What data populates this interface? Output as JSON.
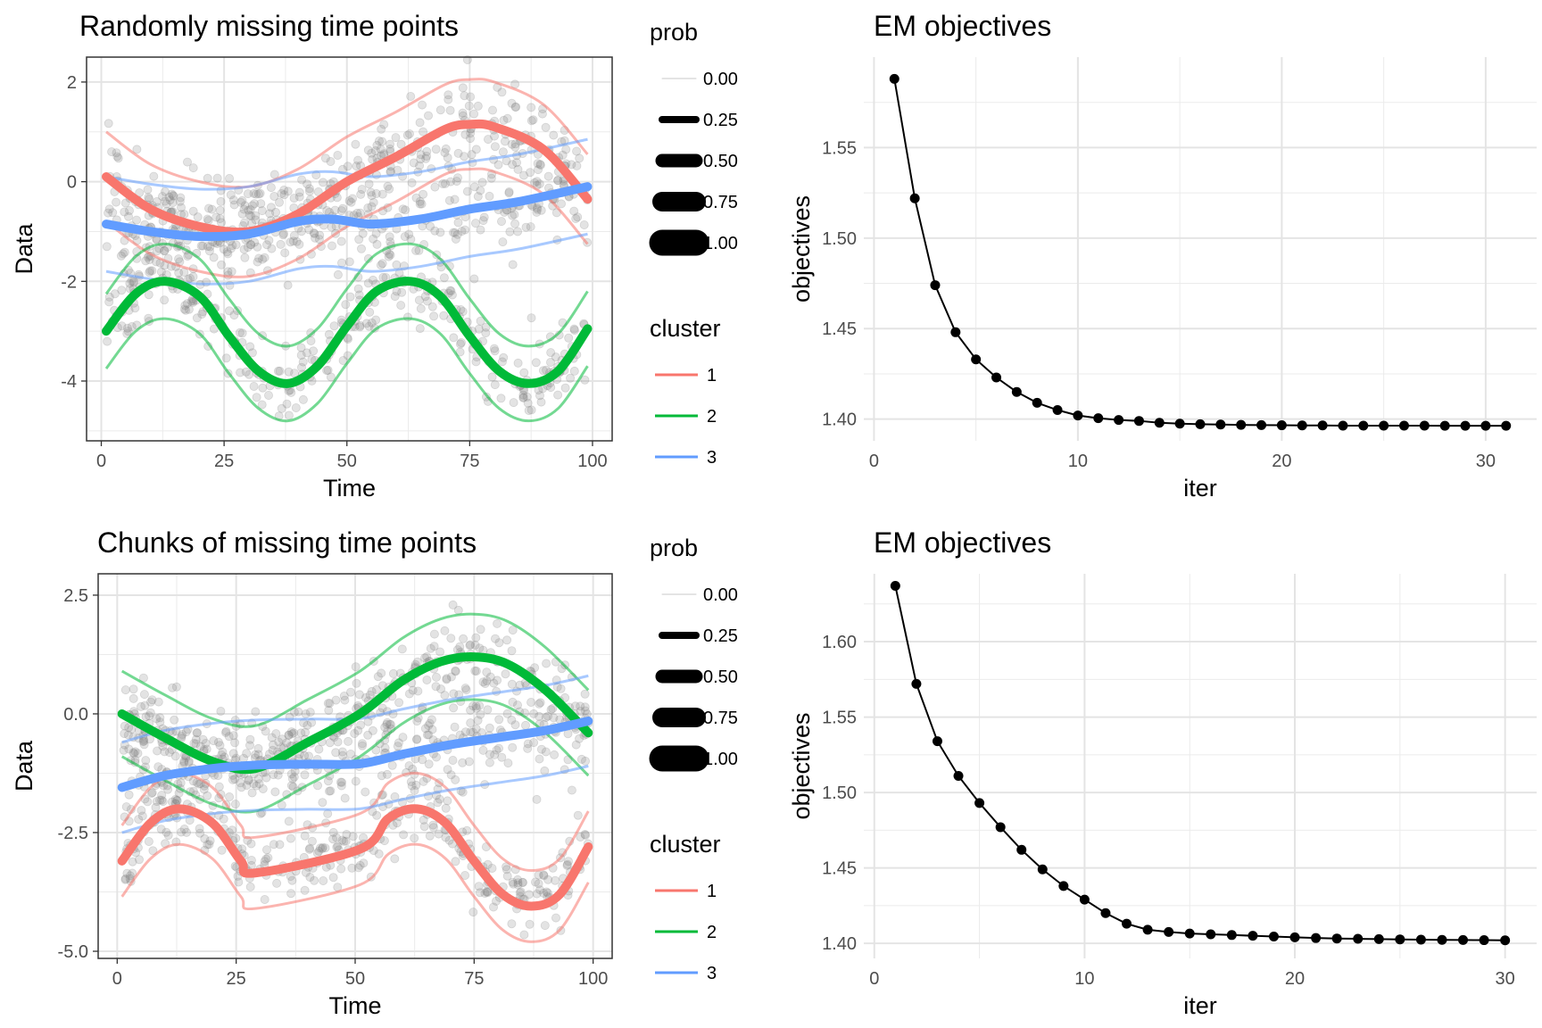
{
  "chart_data": [
    {
      "type": "line",
      "panel": "top-left",
      "title": "Randomly missing time points",
      "xlabel": "Time",
      "ylabel": "Data",
      "xlim": [
        -3,
        104
      ],
      "ylim": [
        -5.2,
        2.5
      ],
      "xticks": [
        0,
        25,
        50,
        75,
        100
      ],
      "xtick_labels": [
        "0",
        "25",
        "50",
        "75",
        "100"
      ],
      "yticks": [
        -4,
        -2,
        0,
        2
      ],
      "ytick_labels": [
        "-4",
        "-2",
        "0",
        "2"
      ],
      "grid": true,
      "panel_border": true,
      "scatter_color": "#808080",
      "scatter_seed": 11,
      "series": [
        {
          "name": "1",
          "color": "#F8766D",
          "x": [
            1,
            10,
            20,
            30,
            40,
            50,
            60,
            70,
            75,
            80,
            90,
            99
          ],
          "mean": [
            0.1,
            -0.55,
            -0.9,
            -1.0,
            -0.65,
            0.0,
            0.5,
            1.05,
            1.15,
            1.1,
            0.65,
            -0.35
          ],
          "band": 0.9
        },
        {
          "name": "2",
          "color": "#00BA38",
          "x": [
            1,
            7,
            13,
            20,
            26,
            32,
            38,
            44,
            50,
            56,
            63,
            69,
            75,
            81,
            87,
            93,
            99
          ],
          "mean": [
            -3.0,
            -2.25,
            -2.0,
            -2.3,
            -3.1,
            -3.8,
            -4.05,
            -3.7,
            -2.9,
            -2.2,
            -2.0,
            -2.3,
            -3.1,
            -3.8,
            -4.05,
            -3.8,
            -2.95
          ],
          "band": 0.75
        },
        {
          "name": "3",
          "color": "#619CFF",
          "x": [
            1,
            10,
            20,
            30,
            40,
            47,
            55,
            65,
            75,
            85,
            99
          ],
          "mean": [
            -0.85,
            -1.0,
            -1.1,
            -1.05,
            -0.8,
            -0.75,
            -0.85,
            -0.75,
            -0.55,
            -0.4,
            -0.1
          ],
          "band": 0.95
        }
      ]
    },
    {
      "type": "line",
      "panel": "top-right",
      "title": "EM objectives",
      "xlabel": "iter",
      "ylabel": "objectives",
      "xlim": [
        -0.5,
        32.5
      ],
      "ylim": [
        1.388,
        1.6
      ],
      "xticks": [
        0,
        10,
        20,
        30
      ],
      "xtick_labels": [
        "0",
        "10",
        "20",
        "30"
      ],
      "yticks": [
        1.4,
        1.45,
        1.5,
        1.55
      ],
      "ytick_labels": [
        "1.40",
        "1.45",
        "1.50",
        "1.55"
      ],
      "grid": true,
      "panel_border": false,
      "x": [
        1,
        2,
        3,
        4,
        5,
        6,
        7,
        8,
        9,
        10,
        11,
        12,
        13,
        14,
        15,
        16,
        17,
        18,
        19,
        20,
        21,
        22,
        23,
        24,
        25,
        26,
        27,
        28,
        29,
        30,
        31
      ],
      "y": [
        1.588,
        1.522,
        1.474,
        1.448,
        1.433,
        1.423,
        1.415,
        1.409,
        1.405,
        1.402,
        1.4005,
        1.3995,
        1.399,
        1.398,
        1.3975,
        1.3972,
        1.397,
        1.3968,
        1.3967,
        1.3966,
        1.3965,
        1.3965,
        1.3964,
        1.3964,
        1.3964,
        1.3964,
        1.3964,
        1.3963,
        1.3963,
        1.3963,
        1.3963
      ]
    },
    {
      "type": "line",
      "panel": "bottom-left",
      "title": "Chunks of missing time points",
      "xlabel": "Time",
      "ylabel": "Data",
      "xlim": [
        -4,
        104
      ],
      "ylim": [
        -5.15,
        2.95
      ],
      "xticks": [
        0,
        25,
        50,
        75,
        100
      ],
      "xtick_labels": [
        "0",
        "25",
        "50",
        "75",
        "100"
      ],
      "yticks": [
        -5.0,
        -2.5,
        0.0,
        2.5
      ],
      "ytick_labels": [
        "-5.0",
        "-2.5",
        "0.0",
        "2.5"
      ],
      "grid": true,
      "panel_border": true,
      "scatter_color": "#808080",
      "scatter_seed": 23,
      "series": [
        {
          "name": "1",
          "color": "#F8766D",
          "x": [
            1,
            7,
            13,
            20,
            26,
            29,
            51,
            57,
            63,
            69,
            75,
            81,
            87,
            93,
            99
          ],
          "mean": [
            -3.1,
            -2.3,
            -2.0,
            -2.3,
            -3.1,
            -3.35,
            -2.85,
            -2.2,
            -2.0,
            -2.3,
            -3.1,
            -3.8,
            -4.05,
            -3.8,
            -2.8
          ],
          "band": 0.75
        },
        {
          "name": "2",
          "color": "#00BA38",
          "x": [
            1,
            10,
            20,
            29,
            40,
            51,
            60,
            68,
            75,
            82,
            90,
            99
          ],
          "mean": [
            0.0,
            -0.5,
            -1.0,
            -1.15,
            -0.6,
            0.0,
            0.7,
            1.1,
            1.2,
            1.05,
            0.5,
            -0.4
          ],
          "band": 0.9
        },
        {
          "name": "3",
          "color": "#619CFF",
          "x": [
            1,
            10,
            20,
            29,
            40,
            51,
            60,
            70,
            80,
            90,
            99
          ],
          "mean": [
            -1.55,
            -1.3,
            -1.15,
            -1.08,
            -1.06,
            -1.05,
            -0.85,
            -0.65,
            -0.5,
            -0.35,
            -0.15
          ],
          "band": 0.95
        }
      ]
    },
    {
      "type": "line",
      "panel": "bottom-right",
      "title": "EM objectives",
      "xlabel": "iter",
      "ylabel": "objectives",
      "xlim": [
        -0.5,
        31.5
      ],
      "ylim": [
        1.39,
        1.645
      ],
      "xticks": [
        0,
        10,
        20,
        30
      ],
      "xtick_labels": [
        "0",
        "10",
        "20",
        "30"
      ],
      "yticks": [
        1.4,
        1.45,
        1.5,
        1.55,
        1.6
      ],
      "ytick_labels": [
        "1.40",
        "1.45",
        "1.50",
        "1.55",
        "1.60"
      ],
      "grid": true,
      "panel_border": false,
      "x": [
        1,
        2,
        3,
        4,
        5,
        6,
        7,
        8,
        9,
        10,
        11,
        12,
        13,
        14,
        15,
        16,
        17,
        18,
        19,
        20,
        21,
        22,
        23,
        24,
        25,
        26,
        27,
        28,
        29,
        30
      ],
      "y": [
        1.637,
        1.572,
        1.534,
        1.511,
        1.493,
        1.477,
        1.462,
        1.449,
        1.438,
        1.429,
        1.42,
        1.413,
        1.409,
        1.4075,
        1.4065,
        1.406,
        1.4055,
        1.405,
        1.4045,
        1.404,
        1.4035,
        1.4032,
        1.403,
        1.4028,
        1.4026,
        1.4024,
        1.4023,
        1.4022,
        1.4021,
        1.402
      ]
    }
  ],
  "legends": [
    {
      "panel": "top",
      "prob_title": "prob",
      "prob_items": [
        {
          "label": "0.00",
          "value": 0.0
        },
        {
          "label": "0.25",
          "value": 0.25
        },
        {
          "label": "0.50",
          "value": 0.5
        },
        {
          "label": "0.75",
          "value": 0.75
        },
        {
          "label": "1.00",
          "value": 1.0
        }
      ],
      "cluster_title": "cluster",
      "cluster_items": [
        {
          "label": "1",
          "color": "#F8766D"
        },
        {
          "label": "2",
          "color": "#00BA38"
        },
        {
          "label": "3",
          "color": "#619CFF"
        }
      ]
    },
    {
      "panel": "bottom",
      "prob_title": "prob",
      "prob_items": [
        {
          "label": "0.00",
          "value": 0.0
        },
        {
          "label": "0.25",
          "value": 0.25
        },
        {
          "label": "0.50",
          "value": 0.5
        },
        {
          "label": "0.75",
          "value": 0.75
        },
        {
          "label": "1.00",
          "value": 1.0
        }
      ],
      "cluster_title": "cluster",
      "cluster_items": [
        {
          "label": "1",
          "color": "#F8766D"
        },
        {
          "label": "2",
          "color": "#00BA38"
        },
        {
          "label": "3",
          "color": "#619CFF"
        }
      ]
    }
  ]
}
